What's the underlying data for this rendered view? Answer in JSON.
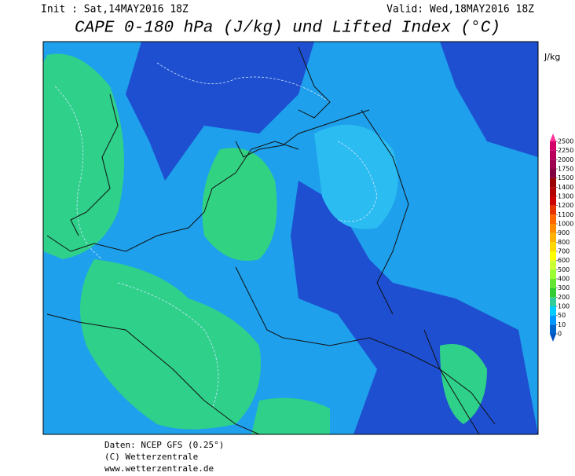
{
  "header": {
    "init": "Init : Sat,14MAY2016 18Z",
    "valid": "Valid: Wed,18MAY2016 18Z",
    "title": "CAPE 0-180 hPa (J/kg) und Lifted Index (°C)"
  },
  "legend": {
    "unit": "J/kg",
    "levels": [
      2500,
      2250,
      2000,
      1750,
      1500,
      1400,
      1300,
      1200,
      1100,
      1000,
      900,
      800,
      700,
      600,
      500,
      400,
      300,
      200,
      100,
      50,
      10,
      0
    ],
    "colors": [
      "#d4006a",
      "#b8005c",
      "#9c004e",
      "#800040",
      "#990000",
      "#b30000",
      "#cc0000",
      "#e63300",
      "#ff6600",
      "#ff8c00",
      "#ffb300",
      "#ffd700",
      "#ffff00",
      "#ccff33",
      "#99ff33",
      "#66e633",
      "#33cc33",
      "#33cc99",
      "#00ccff",
      "#0099ff",
      "#0066cc"
    ],
    "top_color": "#ff3399",
    "bottom_color": "#0050c0"
  },
  "footer": [
    "Daten: NCEP GFS (0.25°)",
    "(C) Wetterzentrale",
    "www.wetterzentrale.de"
  ]
}
